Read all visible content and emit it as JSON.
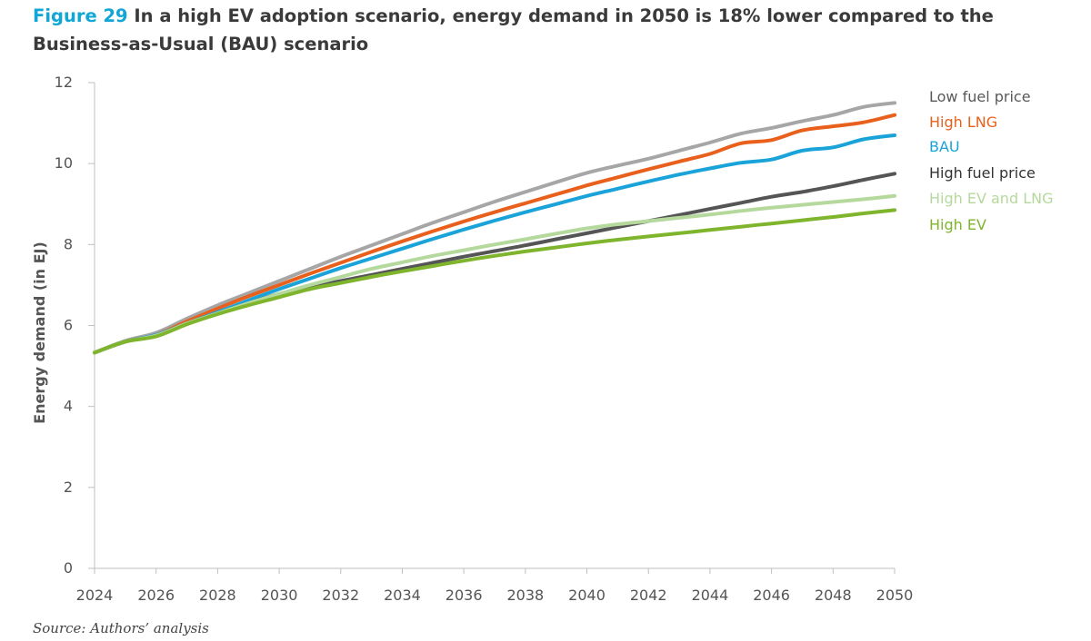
{
  "title": {
    "prefix": "Figure 29",
    "text": "In a high EV adoption scenario, energy demand in 2050 is 18% lower compared to the Business-as-Usual (BAU) scenario"
  },
  "source": "Source: Authors’ analysis",
  "chart_data": {
    "type": "line",
    "xlabel": "",
    "ylabel": "Energy demand (in EJ)",
    "xlim": [
      2024,
      2050
    ],
    "ylim": [
      0,
      12
    ],
    "xticks": [
      "2024",
      "2026",
      "2028",
      "2030",
      "2032",
      "2034",
      "2036",
      "2038",
      "2040",
      "2042",
      "2044",
      "2046",
      "2048",
      "2050"
    ],
    "yticks": [
      "0",
      "2",
      "4",
      "6",
      "8",
      "10",
      "12"
    ],
    "legend_placement": "right, aligned with line ends",
    "grid": false,
    "x": [
      2024,
      2025,
      2026,
      2027,
      2028,
      2029,
      2030,
      2031,
      2032,
      2033,
      2034,
      2035,
      2036,
      2037,
      2038,
      2039,
      2040,
      2041,
      2042,
      2043,
      2044,
      2045,
      2046,
      2047,
      2048,
      2049,
      2050
    ],
    "series": [
      {
        "name": "Low fuel price",
        "color": "#a6a6a6",
        "values": [
          5.33,
          5.62,
          5.82,
          6.17,
          6.5,
          6.8,
          7.1,
          7.4,
          7.7,
          7.98,
          8.26,
          8.54,
          8.8,
          9.06,
          9.3,
          9.54,
          9.77,
          9.95,
          10.12,
          10.32,
          10.52,
          10.74,
          10.88,
          11.05,
          11.2,
          11.4,
          11.5
        ]
      },
      {
        "name": "High LNG",
        "color": "#e8601c",
        "values": [
          5.33,
          5.6,
          5.77,
          6.1,
          6.42,
          6.72,
          7.0,
          7.28,
          7.55,
          7.82,
          8.08,
          8.33,
          8.57,
          8.8,
          9.02,
          9.24,
          9.46,
          9.66,
          9.86,
          10.05,
          10.24,
          10.5,
          10.58,
          10.82,
          10.92,
          11.02,
          11.2
        ]
      },
      {
        "name": "BAU",
        "color": "#1aa3d9",
        "values": [
          5.33,
          5.6,
          5.77,
          6.05,
          6.33,
          6.62,
          6.9,
          7.16,
          7.42,
          7.66,
          7.9,
          8.14,
          8.37,
          8.59,
          8.8,
          9.0,
          9.2,
          9.38,
          9.56,
          9.73,
          9.88,
          10.02,
          10.1,
          10.32,
          10.4,
          10.6,
          10.7
        ]
      },
      {
        "name": "High fuel price",
        "color": "#555555",
        "values": [
          5.33,
          5.6,
          5.75,
          6.05,
          6.3,
          6.55,
          6.78,
          6.95,
          7.1,
          7.25,
          7.4,
          7.55,
          7.7,
          7.84,
          7.98,
          8.13,
          8.28,
          8.43,
          8.58,
          8.73,
          8.88,
          9.03,
          9.18,
          9.3,
          9.44,
          9.6,
          9.75
        ]
      },
      {
        "name": "High EV and LNG",
        "color": "#b5d99c",
        "values": [
          5.33,
          5.6,
          5.75,
          6.05,
          6.3,
          6.55,
          6.78,
          7.0,
          7.2,
          7.4,
          7.56,
          7.72,
          7.86,
          8.0,
          8.13,
          8.27,
          8.4,
          8.5,
          8.58,
          8.66,
          8.74,
          8.83,
          8.91,
          8.98,
          9.05,
          9.12,
          9.2
        ]
      },
      {
        "name": "High EV",
        "color": "#7fb52c",
        "values": [
          5.33,
          5.6,
          5.73,
          6.03,
          6.28,
          6.5,
          6.7,
          6.9,
          7.05,
          7.2,
          7.34,
          7.47,
          7.6,
          7.72,
          7.83,
          7.93,
          8.03,
          8.12,
          8.2,
          8.28,
          8.36,
          8.44,
          8.52,
          8.6,
          8.68,
          8.77,
          8.85
        ]
      }
    ]
  }
}
